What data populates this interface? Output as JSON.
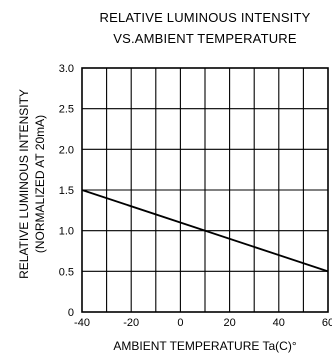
{
  "chart_data": {
    "type": "line",
    "title": "RELATIVE LUMINOUS INTENSITY",
    "subtitle": "VS.AMBIENT TEMPERATURE",
    "xlabel": "AMBIENT TEMPERATURE Ta(C)°",
    "ylabel": [
      "RELATIVE LUMINOUS INTENSITY",
      "(NORMALIZED AT 20mA)"
    ],
    "xlim": [
      -40,
      60
    ],
    "ylim": [
      0,
      3.0
    ],
    "x_ticks": [
      "-40",
      "-20",
      "0",
      "20",
      "40",
      "60"
    ],
    "x_tick_values": [
      -40,
      -20,
      0,
      20,
      40,
      60
    ],
    "y_ticks": [
      "0",
      "0.5",
      "1.0",
      "1.5",
      "2.0",
      "2.5",
      "3.0"
    ],
    "y_tick_values": [
      0,
      0.5,
      1.0,
      1.5,
      2.0,
      2.5,
      3.0
    ],
    "x_grid_step": 10,
    "y_grid_step": 0.5,
    "grid": true,
    "series": [
      {
        "x": [
          -40,
          60
        ],
        "y": [
          1.5,
          0.5
        ],
        "color": "#000000"
      }
    ]
  }
}
